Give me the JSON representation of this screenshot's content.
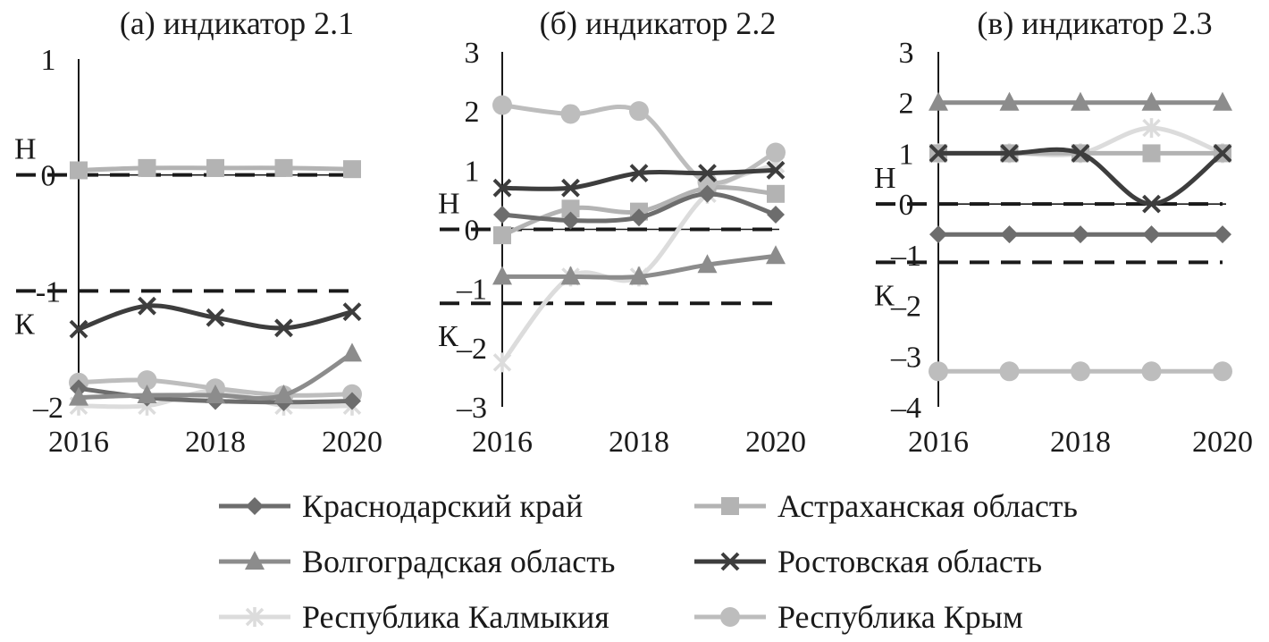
{
  "chart_data": [
    {
      "type": "line",
      "title": "(а) индикатор 2.1",
      "x": [
        2016,
        2017,
        2018,
        2019,
        2020
      ],
      "x_ticks": [
        "2016",
        "2018",
        "2020"
      ],
      "y_ticks": [
        "1",
        "0",
        "-1",
        "–2"
      ],
      "ylim": [
        -2,
        1
      ],
      "thresholds": [
        {
          "label": "Н",
          "value": 0
        },
        {
          "label": "К",
          "value": -1
        }
      ],
      "series": [
        {
          "name": "Краснодарский край",
          "values": [
            -1.84,
            -1.92,
            -1.95,
            -1.96,
            -1.95
          ]
        },
        {
          "name": "Астраханская область",
          "values": [
            0.04,
            0.06,
            0.06,
            0.06,
            0.05
          ]
        },
        {
          "name": "Волгоградская область",
          "values": [
            -1.92,
            -1.9,
            -1.9,
            -1.9,
            -1.54
          ]
        },
        {
          "name": "Ростовская область",
          "values": [
            -1.33,
            -1.13,
            -1.23,
            -1.32,
            -1.18
          ]
        },
        {
          "name": "Республика Калмыкия",
          "values": [
            -1.99,
            -1.99,
            -1.86,
            -1.99,
            -1.99
          ]
        },
        {
          "name": "Республика Крым",
          "values": [
            -1.79,
            -1.77,
            -1.84,
            -1.9,
            -1.89
          ]
        }
      ]
    },
    {
      "type": "line",
      "title": "(б) индикатор 2.2",
      "x": [
        2016,
        2017,
        2018,
        2019,
        2020
      ],
      "x_ticks": [
        "2016",
        "2018",
        "2020"
      ],
      "y_ticks": [
        "3",
        "2",
        "1",
        "0",
        "–1",
        "–2",
        "–3"
      ],
      "ylim": [
        -3,
        3
      ],
      "thresholds": [
        {
          "label": "Н",
          "value": 0
        },
        {
          "label": "К",
          "value": -1.25
        }
      ],
      "series": [
        {
          "name": "Краснодарский край",
          "values": [
            0.25,
            0.15,
            0.2,
            0.6,
            0.25
          ]
        },
        {
          "name": "Астраханская область",
          "values": [
            -0.1,
            0.35,
            0.3,
            0.7,
            0.6
          ]
        },
        {
          "name": "Волгоградская область",
          "values": [
            -0.8,
            -0.8,
            -0.8,
            -0.6,
            -0.45
          ]
        },
        {
          "name": "Ростовская область",
          "values": [
            0.7,
            0.7,
            0.95,
            0.95,
            1.0
          ]
        },
        {
          "name": "Республика Калмыкия",
          "values": [
            -2.25,
            -0.8,
            -0.8,
            0.6,
            1.1
          ]
        },
        {
          "name": "Республика Крым",
          "values": [
            2.1,
            1.95,
            2.0,
            0.8,
            1.3
          ]
        }
      ]
    },
    {
      "type": "line",
      "title": "(в) индикатор 2.3",
      "x": [
        2016,
        2017,
        2018,
        2019,
        2020
      ],
      "x_ticks": [
        "2016",
        "2018",
        "2020"
      ],
      "y_ticks": [
        "3",
        "2",
        "1",
        "0",
        "–1",
        "–2",
        "–3",
        "–4"
      ],
      "ylim": [
        -4,
        3
      ],
      "thresholds": [
        {
          "label": "Н",
          "value": 0
        },
        {
          "label": "К",
          "value": -1.15
        }
      ],
      "series": [
        {
          "name": "Краснодарский край",
          "values": [
            -0.6,
            -0.6,
            -0.6,
            -0.6,
            -0.6
          ]
        },
        {
          "name": "Астраханская область",
          "values": [
            1,
            1,
            1,
            1,
            1
          ]
        },
        {
          "name": "Волгоградская область",
          "values": [
            2,
            2,
            2,
            2,
            2
          ]
        },
        {
          "name": "Ростовская область",
          "values": [
            1,
            1,
            1,
            0,
            1
          ]
        },
        {
          "name": "Республика Калмыкия",
          "values": [
            1,
            1,
            1,
            1.5,
            1
          ]
        },
        {
          "name": "Республика Крым",
          "values": [
            -3.3,
            -3.3,
            -3.3,
            -3.3,
            -3.3
          ]
        }
      ]
    }
  ],
  "series_styles": [
    {
      "color": "#6d6d6d",
      "marker": "diamond"
    },
    {
      "color": "#b3b3b3",
      "marker": "square"
    },
    {
      "color": "#8c8c8c",
      "marker": "triangle"
    },
    {
      "color": "#3d3d3d",
      "marker": "x"
    },
    {
      "color": "#dcdcdc",
      "marker": "asterisk"
    },
    {
      "color": "#bdbdbd",
      "marker": "circle"
    }
  ],
  "legend": {
    "placement": "bottom",
    "items": [
      "Краснодарский край",
      "Астраханская область",
      "Волгоградская область",
      "Ростовская область",
      "Республика Калмыкия",
      "Республика Крым"
    ]
  }
}
